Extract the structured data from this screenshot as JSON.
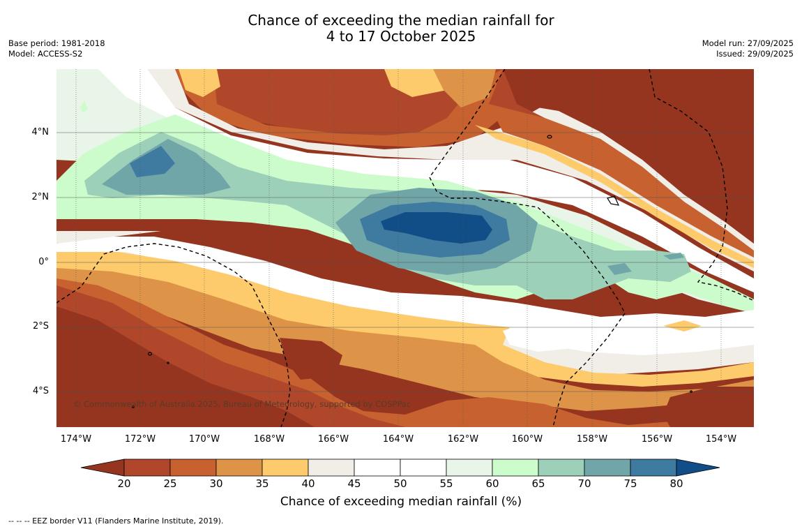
{
  "title": {
    "line1": "Chance of exceeding the median rainfall for",
    "line2": "4 to 17 October 2025"
  },
  "meta_left": {
    "base_period": "Base period: 1981-2018",
    "model": "Model: ACCESS-S2"
  },
  "meta_right": {
    "model_run": "Model run: 27/09/2025",
    "issued": "Issued: 29/09/2025"
  },
  "map": {
    "lon_ticks": [
      "174°W",
      "172°W",
      "170°W",
      "168°W",
      "166°W",
      "164°W",
      "162°W",
      "160°W",
      "158°W",
      "156°W",
      "154°W"
    ],
    "lat_ticks": [
      "4°N",
      "2°N",
      "0°",
      "2°S",
      "4°S"
    ],
    "copyright": "© Commonwealth of Australia 2025, Bureau of Meteorology, supported by COSPPac"
  },
  "colorbar": {
    "ticks": [
      "20",
      "25",
      "30",
      "35",
      "40",
      "45",
      "50",
      "55",
      "60",
      "65",
      "70",
      "75",
      "80"
    ],
    "colors": [
      "#953520",
      "#B0472A",
      "#C7612F",
      "#DE9448",
      "#FDCB6C",
      "#F1EEE8",
      "#FFFFFF",
      "#FFFFFF",
      "#EAF5E9",
      "#CCFCCB",
      "#9CD0B8",
      "#71A6A8",
      "#3F7AA0",
      "#114D86"
    ],
    "label": "Chance of exceeding median rainfall (%)"
  },
  "legend_note": "--  --  -- EEZ border V11 (Flanders Marine Institute, 2019)."
}
